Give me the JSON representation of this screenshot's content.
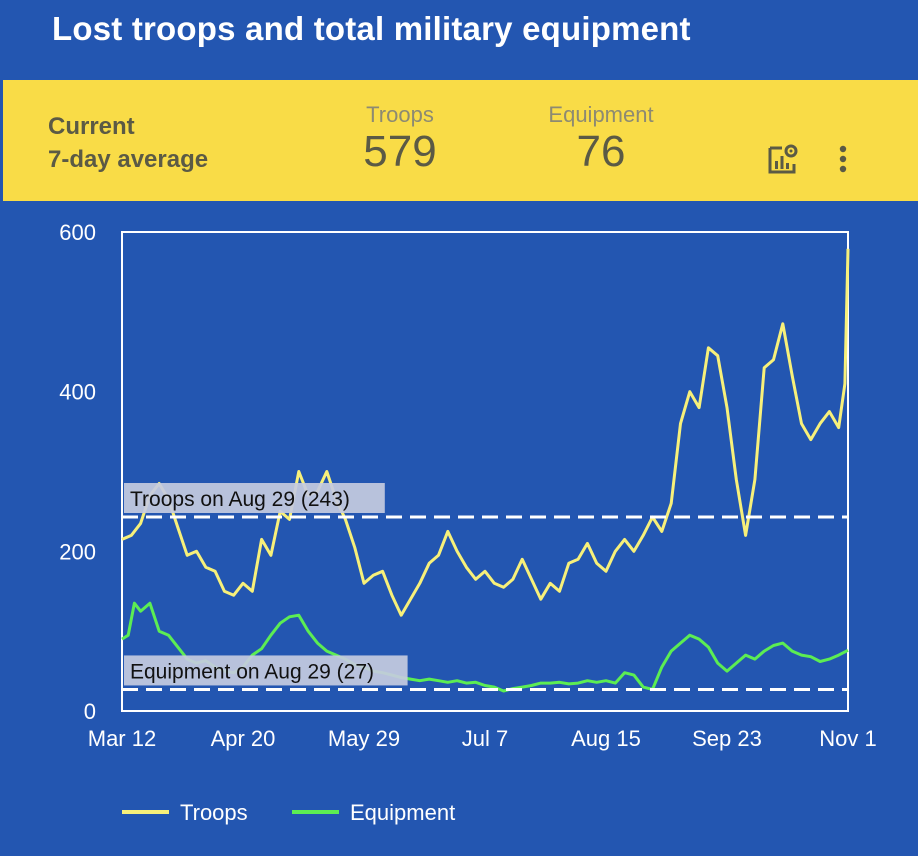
{
  "header": {
    "title": "Lost troops and total military equipment"
  },
  "summary": {
    "label_line1": "Current",
    "label_line2": "7-day average",
    "troops_label": "Troops",
    "troops_value": "579",
    "equipment_label": "Equipment",
    "equipment_value": "76",
    "icons": [
      "chart-settings-icon",
      "more-vert-icon"
    ]
  },
  "colors": {
    "background": "#2356b1",
    "summary_bg": "#f9dc47",
    "troops": "#f7f07a",
    "equipment": "#5ced53"
  },
  "chart_data": {
    "type": "line",
    "title": "",
    "xlabel": "",
    "ylabel": "",
    "ylim": [
      0,
      600
    ],
    "y_ticks": [
      "0",
      "200",
      "400",
      "600"
    ],
    "x_ticks": [
      "Mar 12",
      "Apr 20",
      "May 29",
      "Jul 7",
      "Aug 15",
      "Sep 23",
      "Nov 1"
    ],
    "x_start": "2022-03-12",
    "x_end": "2022-11-01",
    "grid": false,
    "legend_position": "bottom-left",
    "reference_lines": [
      {
        "label": "Troops on Aug 29 (243)",
        "value": 243,
        "series": "Troops"
      },
      {
        "label": "Equipment on Aug 29 (27)",
        "value": 27,
        "series": "Equipment"
      }
    ],
    "series": [
      {
        "name": "Troops",
        "points": [
          [
            "2022-03-12",
            215
          ],
          [
            "2022-03-15",
            220
          ],
          [
            "2022-03-18",
            235
          ],
          [
            "2022-03-21",
            270
          ],
          [
            "2022-03-24",
            285
          ],
          [
            "2022-03-27",
            265
          ],
          [
            "2022-03-30",
            230
          ],
          [
            "2022-04-02",
            195
          ],
          [
            "2022-04-05",
            200
          ],
          [
            "2022-04-08",
            180
          ],
          [
            "2022-04-11",
            175
          ],
          [
            "2022-04-14",
            150
          ],
          [
            "2022-04-17",
            145
          ],
          [
            "2022-04-20",
            160
          ],
          [
            "2022-04-23",
            150
          ],
          [
            "2022-04-26",
            215
          ],
          [
            "2022-04-29",
            195
          ],
          [
            "2022-05-02",
            250
          ],
          [
            "2022-05-05",
            240
          ],
          [
            "2022-05-08",
            300
          ],
          [
            "2022-05-11",
            270
          ],
          [
            "2022-05-14",
            275
          ],
          [
            "2022-05-17",
            300
          ],
          [
            "2022-05-20",
            265
          ],
          [
            "2022-05-23",
            240
          ],
          [
            "2022-05-26",
            205
          ],
          [
            "2022-05-29",
            160
          ],
          [
            "2022-06-01",
            170
          ],
          [
            "2022-06-04",
            175
          ],
          [
            "2022-06-07",
            145
          ],
          [
            "2022-06-10",
            120
          ],
          [
            "2022-06-13",
            140
          ],
          [
            "2022-06-16",
            160
          ],
          [
            "2022-06-19",
            185
          ],
          [
            "2022-06-22",
            195
          ],
          [
            "2022-06-25",
            225
          ],
          [
            "2022-06-28",
            200
          ],
          [
            "2022-07-01",
            180
          ],
          [
            "2022-07-04",
            165
          ],
          [
            "2022-07-07",
            175
          ],
          [
            "2022-07-10",
            160
          ],
          [
            "2022-07-13",
            155
          ],
          [
            "2022-07-16",
            165
          ],
          [
            "2022-07-19",
            190
          ],
          [
            "2022-07-22",
            165
          ],
          [
            "2022-07-25",
            140
          ],
          [
            "2022-07-28",
            160
          ],
          [
            "2022-07-31",
            150
          ],
          [
            "2022-08-03",
            185
          ],
          [
            "2022-08-06",
            190
          ],
          [
            "2022-08-09",
            210
          ],
          [
            "2022-08-12",
            185
          ],
          [
            "2022-08-15",
            175
          ],
          [
            "2022-08-18",
            200
          ],
          [
            "2022-08-21",
            215
          ],
          [
            "2022-08-24",
            200
          ],
          [
            "2022-08-27",
            220
          ],
          [
            "2022-08-30",
            243
          ],
          [
            "2022-09-02",
            225
          ],
          [
            "2022-09-05",
            260
          ],
          [
            "2022-09-08",
            360
          ],
          [
            "2022-09-11",
            400
          ],
          [
            "2022-09-14",
            380
          ],
          [
            "2022-09-17",
            455
          ],
          [
            "2022-09-20",
            445
          ],
          [
            "2022-09-23",
            380
          ],
          [
            "2022-09-26",
            290
          ],
          [
            "2022-09-29",
            220
          ],
          [
            "2022-10-02",
            290
          ],
          [
            "2022-10-05",
            430
          ],
          [
            "2022-10-08",
            440
          ],
          [
            "2022-10-11",
            485
          ],
          [
            "2022-10-14",
            420
          ],
          [
            "2022-10-17",
            360
          ],
          [
            "2022-10-20",
            340
          ],
          [
            "2022-10-23",
            360
          ],
          [
            "2022-10-26",
            375
          ],
          [
            "2022-10-29",
            355
          ],
          [
            "2022-10-31",
            410
          ],
          [
            "2022-11-01",
            579
          ]
        ]
      },
      {
        "name": "Equipment",
        "points": [
          [
            "2022-03-12",
            90
          ],
          [
            "2022-03-14",
            95
          ],
          [
            "2022-03-16",
            135
          ],
          [
            "2022-03-18",
            125
          ],
          [
            "2022-03-21",
            135
          ],
          [
            "2022-03-24",
            100
          ],
          [
            "2022-03-27",
            95
          ],
          [
            "2022-03-30",
            80
          ],
          [
            "2022-04-02",
            65
          ],
          [
            "2022-04-05",
            60
          ],
          [
            "2022-04-08",
            63
          ],
          [
            "2022-04-11",
            55
          ],
          [
            "2022-04-14",
            50
          ],
          [
            "2022-04-17",
            48
          ],
          [
            "2022-04-20",
            55
          ],
          [
            "2022-04-23",
            70
          ],
          [
            "2022-04-26",
            78
          ],
          [
            "2022-04-29",
            95
          ],
          [
            "2022-05-02",
            110
          ],
          [
            "2022-05-05",
            118
          ],
          [
            "2022-05-08",
            120
          ],
          [
            "2022-05-11",
            100
          ],
          [
            "2022-05-14",
            85
          ],
          [
            "2022-05-17",
            75
          ],
          [
            "2022-05-20",
            70
          ],
          [
            "2022-05-23",
            65
          ],
          [
            "2022-05-26",
            58
          ],
          [
            "2022-05-29",
            55
          ],
          [
            "2022-06-01",
            50
          ],
          [
            "2022-06-04",
            48
          ],
          [
            "2022-06-07",
            45
          ],
          [
            "2022-06-10",
            42
          ],
          [
            "2022-06-13",
            40
          ],
          [
            "2022-06-16",
            38
          ],
          [
            "2022-06-19",
            40
          ],
          [
            "2022-06-22",
            38
          ],
          [
            "2022-06-25",
            36
          ],
          [
            "2022-06-28",
            38
          ],
          [
            "2022-07-01",
            35
          ],
          [
            "2022-07-04",
            36
          ],
          [
            "2022-07-07",
            32
          ],
          [
            "2022-07-10",
            30
          ],
          [
            "2022-07-13",
            25
          ],
          [
            "2022-07-16",
            28
          ],
          [
            "2022-07-19",
            30
          ],
          [
            "2022-07-22",
            32
          ],
          [
            "2022-07-25",
            35
          ],
          [
            "2022-07-28",
            35
          ],
          [
            "2022-07-31",
            36
          ],
          [
            "2022-08-03",
            34
          ],
          [
            "2022-08-06",
            35
          ],
          [
            "2022-08-09",
            38
          ],
          [
            "2022-08-12",
            36
          ],
          [
            "2022-08-15",
            38
          ],
          [
            "2022-08-18",
            35
          ],
          [
            "2022-08-21",
            48
          ],
          [
            "2022-08-24",
            45
          ],
          [
            "2022-08-27",
            30
          ],
          [
            "2022-08-30",
            27
          ],
          [
            "2022-09-02",
            55
          ],
          [
            "2022-09-05",
            75
          ],
          [
            "2022-09-08",
            85
          ],
          [
            "2022-09-11",
            95
          ],
          [
            "2022-09-14",
            90
          ],
          [
            "2022-09-17",
            80
          ],
          [
            "2022-09-20",
            60
          ],
          [
            "2022-09-23",
            50
          ],
          [
            "2022-09-26",
            60
          ],
          [
            "2022-09-29",
            70
          ],
          [
            "2022-10-02",
            65
          ],
          [
            "2022-10-05",
            75
          ],
          [
            "2022-10-08",
            82
          ],
          [
            "2022-10-11",
            85
          ],
          [
            "2022-10-14",
            75
          ],
          [
            "2022-10-17",
            70
          ],
          [
            "2022-10-20",
            68
          ],
          [
            "2022-10-23",
            62
          ],
          [
            "2022-10-26",
            65
          ],
          [
            "2022-10-29",
            70
          ],
          [
            "2022-11-01",
            76
          ]
        ]
      }
    ]
  }
}
